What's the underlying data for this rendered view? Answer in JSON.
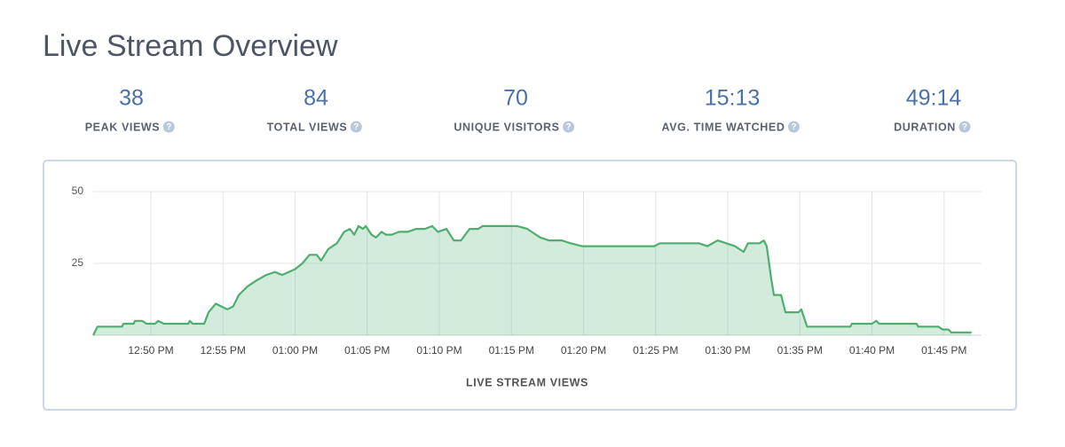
{
  "header": {
    "title": "Live Stream Overview"
  },
  "stats": [
    {
      "value": "38",
      "label": "PEAK VIEWS"
    },
    {
      "value": "84",
      "label": "TOTAL VIEWS"
    },
    {
      "value": "70",
      "label": "UNIQUE VISITORS"
    },
    {
      "value": "15:13",
      "label": "AVG. TIME WATCHED"
    },
    {
      "value": "49:14",
      "label": "DURATION"
    }
  ],
  "chart_data": {
    "type": "area",
    "x_label": "LIVE STREAM VIEWS",
    "color": "#4fae6f",
    "grid": true,
    "x": [
      46.0,
      46.3,
      48.0,
      48.1,
      48.8,
      48.9,
      49.4,
      49.7,
      50.3,
      50.5,
      50.9,
      52.6,
      52.7,
      52.9,
      53.7,
      54.0,
      54.5,
      54.9,
      55.3,
      55.7,
      56.1,
      56.7,
      57.3,
      58.0,
      58.6,
      59.1,
      60.0,
      60.5,
      61.0,
      61.5,
      61.8,
      62.3,
      62.9,
      63.4,
      63.8,
      64.1,
      64.4,
      64.7,
      64.9,
      65.3,
      65.6,
      66.0,
      66.3,
      66.7,
      67.2,
      67.8,
      68.4,
      69.0,
      69.5,
      69.9,
      70.5,
      71.0,
      71.5,
      72.1,
      72.7,
      73.0,
      73.9,
      74.5,
      75.4,
      76.1,
      76.4,
      77.0,
      77.6,
      78.5,
      79.1,
      79.9,
      80.4,
      81.3,
      82.5,
      84.9,
      85.3,
      88.0,
      88.6,
      89.3,
      89.9,
      90.5,
      91.1,
      91.4,
      92.2,
      92.5,
      92.7,
      93.0,
      93.2,
      93.7,
      94.0,
      94.9,
      95.1,
      95.5,
      98.5,
      98.6,
      100.0,
      100.3,
      100.5,
      103.1,
      103.2,
      104.6,
      104.9,
      105.3,
      105.5,
      106.9
    ],
    "values": [
      0,
      3,
      3,
      4,
      4,
      5,
      5,
      4,
      4,
      5,
      4,
      4,
      5,
      4,
      4,
      8,
      11,
      10,
      9,
      10,
      14,
      17,
      19,
      21,
      22,
      21,
      23,
      25,
      28,
      28,
      26,
      30,
      32,
      36,
      37,
      35,
      38,
      37,
      38,
      35,
      34,
      36,
      35,
      35,
      36,
      36,
      37,
      37,
      38,
      36,
      37,
      33,
      33,
      37,
      37,
      38,
      38,
      38,
      38,
      37,
      36,
      34,
      33,
      33,
      32,
      31,
      31,
      31,
      31,
      31,
      32,
      32,
      31,
      33,
      32,
      31,
      29,
      32,
      32,
      33,
      31,
      20,
      14,
      14,
      8,
      8,
      9,
      3,
      3,
      4,
      4,
      5,
      4,
      4,
      3,
      3,
      2,
      2,
      1,
      1
    ],
    "xlim": [
      46,
      107.6
    ],
    "ylim": [
      0,
      50
    ],
    "yticks": [
      25,
      50
    ],
    "xticks": [
      {
        "value": 50,
        "label": "12:50 PM"
      },
      {
        "value": 55,
        "label": "12:55 PM"
      },
      {
        "value": 60,
        "label": "01:00 PM"
      },
      {
        "value": 65,
        "label": "01:05 PM"
      },
      {
        "value": 70,
        "label": "01:10 PM"
      },
      {
        "value": 75,
        "label": "01:15 PM"
      },
      {
        "value": 80,
        "label": "01:20 PM"
      },
      {
        "value": 85,
        "label": "01:25 PM"
      },
      {
        "value": 90,
        "label": "01:30 PM"
      },
      {
        "value": 95,
        "label": "01:35 PM"
      },
      {
        "value": 100,
        "label": "01:40 PM"
      },
      {
        "value": 105,
        "label": "01:45 PM"
      }
    ]
  }
}
